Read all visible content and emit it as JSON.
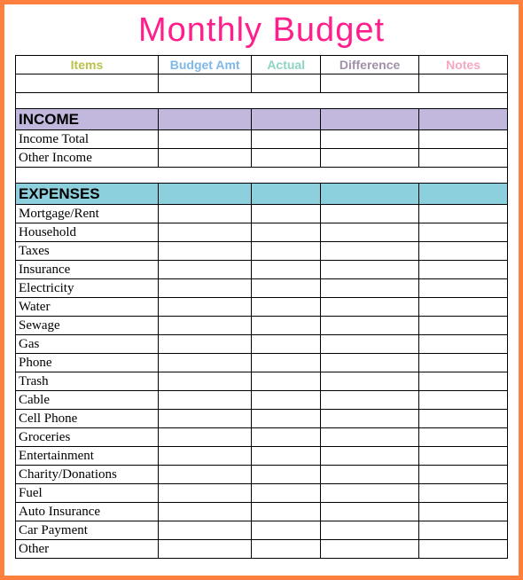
{
  "title": "Monthly Budget",
  "headers": {
    "items": {
      "label": "Items",
      "color": "#b8c248"
    },
    "budget": {
      "label": "Budget Amt",
      "color": "#7fb8e8"
    },
    "actual": {
      "label": "Actual",
      "color": "#8dd4c4"
    },
    "difference": {
      "label": "Difference",
      "color": "#a090a8"
    },
    "notes": {
      "label": "Notes",
      "color": "#f5a8c0"
    }
  },
  "sections": [
    {
      "name": "INCOME",
      "bg": "#c2b8dd",
      "rows": [
        "Income Total",
        "Other Income"
      ]
    },
    {
      "name": "EXPENSES",
      "bg": "#8dd0dd",
      "rows": [
        "Mortgage/Rent",
        "Household",
        "Taxes",
        "Insurance",
        "Electricity",
        "Water",
        "Sewage",
        "Gas",
        "Phone",
        "Trash",
        "Cable",
        "Cell Phone",
        "Groceries",
        "Entertainment",
        "Charity/Donations",
        "Fuel",
        "Auto Insurance",
        "Car Payment",
        "Other"
      ]
    }
  ]
}
